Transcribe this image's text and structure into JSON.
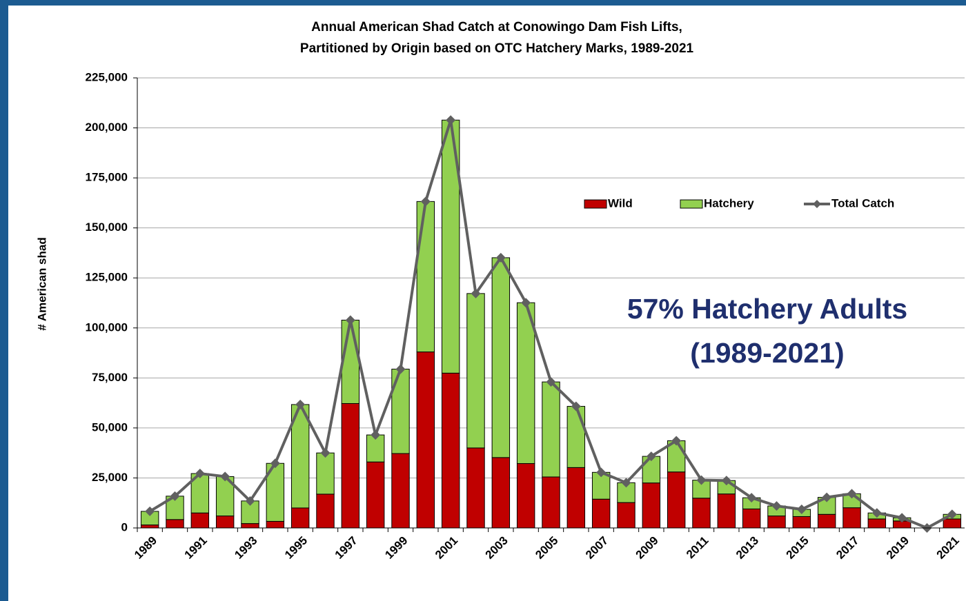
{
  "chart_data": {
    "type": "stacked_bar_line",
    "title": [
      "Annual American Shad Catch at Conowingo Dam Fish Lifts,",
      "Partitioned by Origin based on OTC Hatchery Marks, 1989-2021"
    ],
    "y_label": "# American shad",
    "annotation": [
      "57% Hatchery Adults",
      "(1989-2021)"
    ],
    "categories": [
      "1989",
      null,
      "1991",
      null,
      "1993",
      null,
      "1995",
      null,
      "1997",
      null,
      "1999",
      null,
      "2001",
      null,
      "2003",
      null,
      "2005",
      null,
      "2007",
      null,
      "2009",
      null,
      "2011",
      null,
      "2013",
      null,
      "2015",
      null,
      "2017",
      null,
      "2019",
      null,
      "2021"
    ],
    "series": [
      {
        "name": "Wild",
        "color": "#c00000",
        "kind": "bar",
        "values": [
          1500,
          4200,
          7500,
          6000,
          2200,
          3300,
          10000,
          16900,
          62200,
          33000,
          37200,
          88000,
          77400,
          40000,
          35200,
          32200,
          25500,
          30200,
          14400,
          12700,
          22500,
          28000,
          14900,
          17000,
          9500,
          6000,
          5700,
          6800,
          10100,
          4500,
          3500,
          0,
          4500
        ]
      },
      {
        "name": "Hatchery",
        "color": "#92d050",
        "kind": "bar",
        "values": [
          6800,
          11700,
          19700,
          19700,
          11300,
          29000,
          51700,
          20600,
          41700,
          13500,
          42200,
          75200,
          126500,
          77200,
          99900,
          80400,
          47500,
          30600,
          13400,
          9900,
          13300,
          15600,
          9000,
          6700,
          5600,
          5000,
          3600,
          8500,
          7000,
          3000,
          1600,
          0,
          2300
        ]
      },
      {
        "name": "Total Catch",
        "color": "#606060",
        "kind": "line",
        "values": [
          8300,
          15900,
          27200,
          25700,
          13500,
          32300,
          61700,
          37500,
          103900,
          46500,
          79400,
          163200,
          203900,
          117200,
          135100,
          112600,
          73000,
          60800,
          27800,
          22600,
          35800,
          43600,
          23900,
          23700,
          15100,
          11000,
          9300,
          15300,
          17100,
          7500,
          5100,
          0,
          6800
        ]
      }
    ],
    "ylim": [
      0,
      225000
    ],
    "yticks": [
      0,
      {
        "value": 25000,
        "label": "25,000"
      },
      {
        "value": 50000,
        "label": "50,000"
      },
      {
        "value": 75000,
        "label": "75,000"
      },
      {
        "value": 100000,
        "label": "100,000"
      },
      {
        "value": 125000,
        "label": "125,000"
      },
      {
        "value": 150000,
        "label": "150,000"
      },
      {
        "value": 175000,
        "label": "175,000"
      },
      {
        "value": 200000,
        "label": "200,000"
      },
      {
        "value": 225000,
        "label": "225,000"
      }
    ],
    "grid": true
  }
}
